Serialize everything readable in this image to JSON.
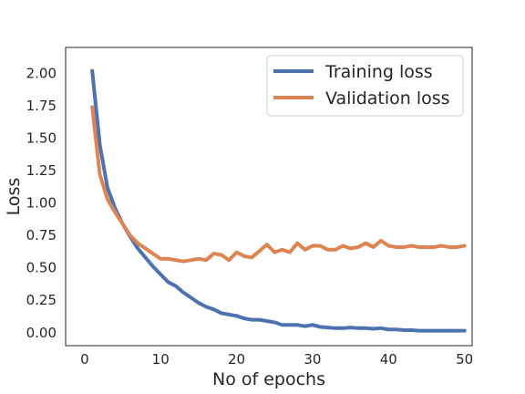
{
  "chart_data": {
    "type": "line",
    "xlabel": "No of epochs",
    "ylabel": "Loss",
    "xlim": [
      -2.5,
      51
    ],
    "ylim": [
      -0.1,
      2.2
    ],
    "x_ticks": [
      0,
      10,
      20,
      30,
      40,
      50
    ],
    "y_ticks": [
      0.0,
      0.25,
      0.5,
      0.75,
      1.0,
      1.25,
      1.5,
      1.75,
      2.0
    ],
    "y_tick_labels": [
      "0.00",
      "0.25",
      "0.50",
      "0.75",
      "1.00",
      "1.25",
      "1.50",
      "1.75",
      "2.00"
    ],
    "grid": false,
    "legend_position": "top-right",
    "x": [
      1,
      2,
      3,
      4,
      5,
      6,
      7,
      8,
      9,
      10,
      11,
      12,
      13,
      14,
      15,
      16,
      17,
      18,
      19,
      20,
      21,
      22,
      23,
      24,
      25,
      26,
      27,
      28,
      29,
      30,
      31,
      32,
      33,
      34,
      35,
      36,
      37,
      38,
      39,
      40,
      41,
      42,
      43,
      44,
      45,
      46,
      47,
      48,
      49,
      50
    ],
    "series": [
      {
        "name": "Training loss",
        "color": "#4c72b0",
        "values": [
          2.02,
          1.45,
          1.12,
          0.96,
          0.84,
          0.74,
          0.65,
          0.58,
          0.51,
          0.45,
          0.39,
          0.36,
          0.31,
          0.27,
          0.23,
          0.2,
          0.18,
          0.15,
          0.14,
          0.13,
          0.11,
          0.1,
          0.1,
          0.09,
          0.08,
          0.06,
          0.06,
          0.06,
          0.05,
          0.06,
          0.045,
          0.04,
          0.035,
          0.035,
          0.04,
          0.035,
          0.035,
          0.03,
          0.035,
          0.025,
          0.025,
          0.02,
          0.02,
          0.015,
          0.015,
          0.015,
          0.015,
          0.015,
          0.015,
          0.015
        ]
      },
      {
        "name": "Validation loss",
        "color": "#dd8452",
        "values": [
          1.74,
          1.22,
          1.03,
          0.93,
          0.84,
          0.75,
          0.69,
          0.65,
          0.61,
          0.57,
          0.57,
          0.56,
          0.55,
          0.56,
          0.57,
          0.56,
          0.61,
          0.6,
          0.56,
          0.62,
          0.59,
          0.58,
          0.63,
          0.68,
          0.62,
          0.64,
          0.62,
          0.69,
          0.64,
          0.67,
          0.67,
          0.64,
          0.64,
          0.67,
          0.65,
          0.66,
          0.69,
          0.66,
          0.71,
          0.67,
          0.66,
          0.66,
          0.67,
          0.66,
          0.66,
          0.66,
          0.67,
          0.66,
          0.66,
          0.67
        ]
      }
    ]
  }
}
